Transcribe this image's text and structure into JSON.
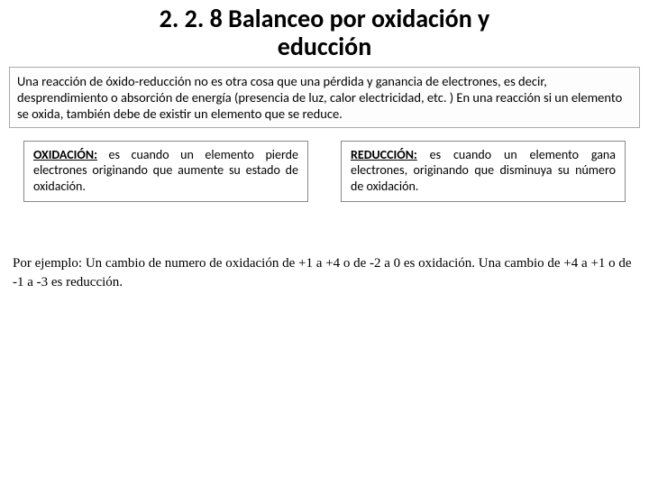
{
  "title_line1": "2. 2. 8 Balanceo por oxidación y",
  "title_line2": "educción",
  "intro": "Una reacción de óxido-reducción no es otra cosa que una pérdida y ganancia de electrones, es decir, desprendimiento o absorción de energía (presencia de luz, calor electricidad, etc. ) En una reacción si un elemento se oxida, también debe de existir un elemento que se reduce.",
  "oxidacion": {
    "term": "OXIDACIÓN:",
    "text": " es cuando un elemento pierde electrones originando que aumente su estado de oxidación."
  },
  "reduccion": {
    "term": "REDUCCIÓN:",
    "text": " es cuando un elemento gana electrones, originando que disminuya su número de oxidación."
  },
  "example": "Por ejemplo: Un cambio de numero de oxidación de +1 a +4 o de -2 a 0 es oxidación. Una cambio de +4 a +1 o de -1 a -3 es reducción.",
  "colors": {
    "text": "#000000",
    "background": "#ffffff",
    "box_border": "#888888",
    "intro_border": "#aaaaaa"
  },
  "fonts": {
    "title_size_pt": 21,
    "body_size_pt": 11,
    "example_family": "Times New Roman"
  }
}
